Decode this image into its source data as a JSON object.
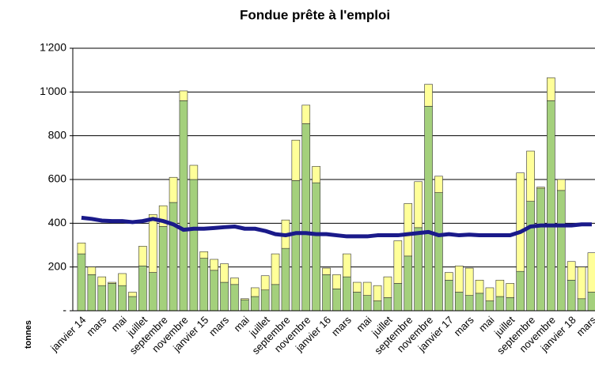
{
  "chart_data": {
    "type": "stacked-bar-line",
    "title": "Fondue prête à l'emploi",
    "ylabel": "tonnes",
    "categories": [
      "janvier 14",
      null,
      "mars",
      null,
      "mai",
      null,
      "juillet",
      null,
      "septembre",
      null,
      "novembre",
      null,
      "janvier 15",
      null,
      "mars",
      null,
      "mai",
      null,
      "juillet",
      null,
      "septembre",
      null,
      "novembre",
      null,
      "janvier 16",
      null,
      "mars",
      null,
      "mai",
      null,
      "juillet",
      null,
      "septembre",
      null,
      "novembre",
      null,
      "janvier 17",
      null,
      "mars",
      null,
      "mai",
      null,
      "juillet",
      null,
      "septembre",
      null,
      "novembre",
      null,
      "janvier 18",
      null,
      "mars"
    ],
    "series": [
      {
        "color": "#a4d07c",
        "values": [
          260,
          165,
          115,
          125,
          115,
          65,
          205,
          175,
          385,
          495,
          960,
          600,
          240,
          185,
          130,
          120,
          50,
          65,
          95,
          120,
          285,
          595,
          855,
          585,
          165,
          100,
          155,
          85,
          70,
          45,
          60,
          125,
          250,
          380,
          935,
          540,
          140,
          85,
          70,
          80,
          45,
          65,
          60,
          180,
          500,
          560,
          960,
          550,
          140,
          55,
          85
        ]
      },
      {
        "color": "#ffff99",
        "values": [
          50,
          35,
          40,
          5,
          55,
          20,
          90,
          265,
          95,
          115,
          45,
          65,
          30,
          50,
          85,
          30,
          5,
          40,
          65,
          140,
          130,
          185,
          85,
          75,
          30,
          65,
          105,
          45,
          60,
          70,
          95,
          195,
          240,
          210,
          100,
          75,
          35,
          120,
          125,
          60,
          60,
          75,
          65,
          450,
          230,
          5,
          105,
          50,
          85,
          145,
          180
        ]
      },
      {
        "type": "line",
        "color": "#1a1a8a",
        "values": [
          425,
          420,
          412,
          410,
          410,
          405,
          410,
          420,
          410,
          395,
          370,
          375,
          375,
          378,
          382,
          385,
          375,
          375,
          365,
          350,
          345,
          355,
          355,
          350,
          350,
          345,
          340,
          340,
          340,
          345,
          345,
          345,
          350,
          355,
          360,
          345,
          350,
          345,
          348,
          345,
          345,
          345,
          345,
          360,
          385,
          390,
          390,
          390,
          390,
          395,
          395
        ]
      }
    ],
    "ylim": [
      0,
      1200
    ],
    "yticks": [
      {
        "value": 0,
        "label": "-"
      },
      200,
      400,
      600,
      800,
      {
        "value": 1000,
        "label": "1'000"
      },
      {
        "value": 1200,
        "label": "1'200"
      }
    ],
    "grid": true
  }
}
